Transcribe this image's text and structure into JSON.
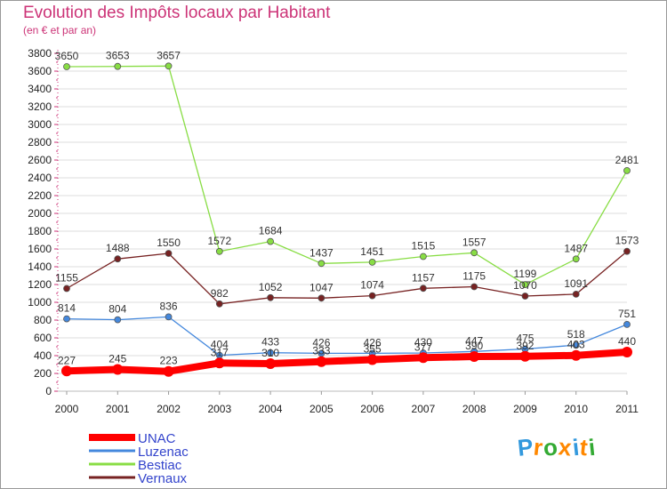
{
  "chart_data": {
    "type": "line",
    "title": "Evolution des Impôts locaux par Habitant",
    "subtitle": "(en € et par an)",
    "xlabel": "",
    "ylabel": "",
    "ylim": [
      0,
      3800
    ],
    "yticks": [
      0,
      200,
      400,
      600,
      800,
      1000,
      1200,
      1400,
      1600,
      1800,
      2000,
      2200,
      2400,
      2600,
      2800,
      3000,
      3200,
      3400,
      3600,
      3800
    ],
    "categories": [
      "2000",
      "2001",
      "2002",
      "2003",
      "2004",
      "2005",
      "2006",
      "2007",
      "2008",
      "2009",
      "2010",
      "2011"
    ],
    "series": [
      {
        "name": "UNAC",
        "color": "#ff0000",
        "values": [
          227,
          245,
          223,
          317,
          310,
          333,
          355,
          377,
          390,
          392,
          403,
          440
        ],
        "labels": [
          "227",
          "245",
          "223",
          "317",
          "310",
          "333",
          "355",
          "377",
          "390",
          "392",
          "403",
          "440"
        ]
      },
      {
        "name": "Luzenac",
        "color": "#4488dd",
        "values": [
          814,
          804,
          836,
          404,
          433,
          426,
          426,
          430,
          447,
          475,
          518,
          751
        ],
        "labels": [
          "814",
          "804",
          "836",
          "404",
          "433",
          "426",
          "426",
          "430",
          "447",
          "475",
          "518",
          "751"
        ]
      },
      {
        "name": "Bestiac",
        "color": "#88dd44",
        "values": [
          3650,
          3653,
          3657,
          1572,
          1684,
          1437,
          1451,
          1515,
          1557,
          1199,
          1487,
          2481
        ],
        "labels": [
          "3650",
          "3653",
          "3657",
          "1572",
          "1684",
          "1437",
          "1451",
          "1515",
          "1557",
          "1199",
          "1487",
          "2481"
        ]
      },
      {
        "name": "Vernaux",
        "color": "#772222",
        "values": [
          1155,
          1488,
          1550,
          982,
          1052,
          1047,
          1074,
          1157,
          1175,
          1070,
          1091,
          1573
        ],
        "labels": [
          "1155",
          "1488",
          "1550",
          "982",
          "1052",
          "1047",
          "1074",
          "1157",
          "1175",
          "1070",
          "1091",
          "1573"
        ]
      }
    ],
    "legend": [
      "UNAC",
      "Luzenac",
      "Bestiac",
      "Vernaux"
    ],
    "legend_position": "bottom-left"
  },
  "logo": {
    "letters": [
      "P",
      "r",
      "o",
      "x",
      "i",
      "t",
      "i"
    ],
    "colors": [
      "#3399dd",
      "#ff8800",
      "#33aa33",
      "#ff8800",
      "#3399dd",
      "#ff8800",
      "#33aa33"
    ]
  }
}
